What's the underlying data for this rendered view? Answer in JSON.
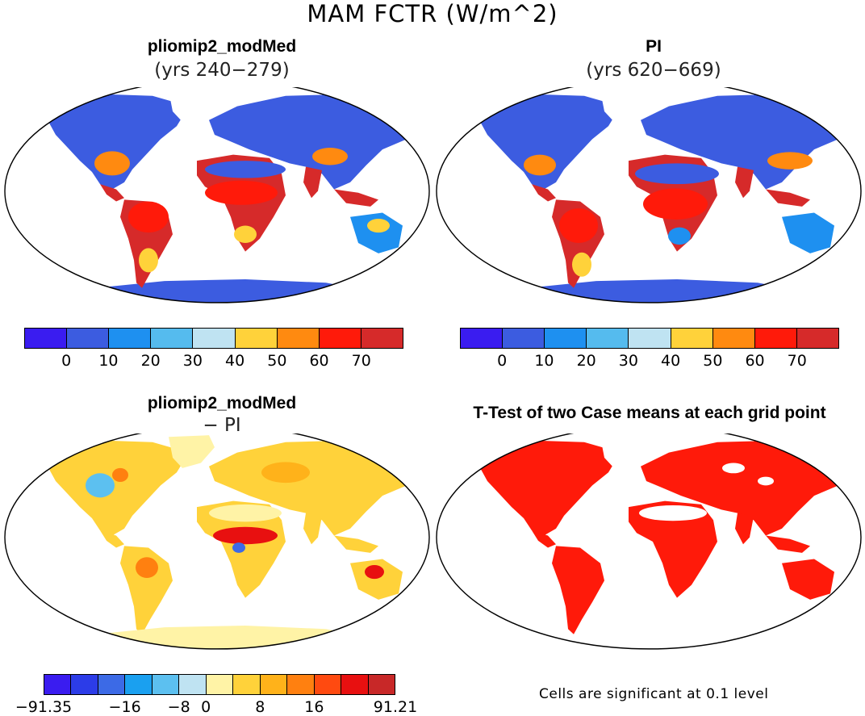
{
  "title": "MAM FCTR (W/m^2)",
  "panels": [
    {
      "title": "pliomip2_modMed",
      "subtitle": "(yrs 240−279)"
    },
    {
      "title": "PI",
      "subtitle": "(yrs 620−669)"
    },
    {
      "title": "pliomip2_modMed",
      "subtitle": "− PI"
    },
    {
      "title": "T-Test of two Case means at each grid point",
      "subtitle": ""
    }
  ],
  "colorbar_abs": {
    "colors": [
      "#3a1cf0",
      "#3c5ce0",
      "#1e90f0",
      "#55bbee",
      "#bfe3f2",
      "#ffd23a",
      "#ff8a10",
      "#ff1a0a",
      "#d62a2a"
    ],
    "labels": [
      "0",
      "10",
      "20",
      "30",
      "40",
      "50",
      "60",
      "70"
    ]
  },
  "colorbar_diff": {
    "colors": [
      "#3a1cf0",
      "#2c3ce8",
      "#3c6ae6",
      "#1aa0f0",
      "#5cc0f0",
      "#bfe3f2",
      "#fff3a6",
      "#ffd23a",
      "#ffb21a",
      "#ff8010",
      "#ff4a10",
      "#e81010",
      "#c82828"
    ],
    "labels": [
      "−91.35",
      "−16",
      "−8",
      "0",
      "8",
      "16",
      "91.21"
    ]
  },
  "ttest_note": "Cells are significant at 0.1 level",
  "colors": {
    "land_cold": "#3c5ce0",
    "land_hot": "#d62a2a",
    "significant": "#ff1a0a",
    "diff_pos": "#ffd23a",
    "diff_neutral": "#fff3a6"
  }
}
